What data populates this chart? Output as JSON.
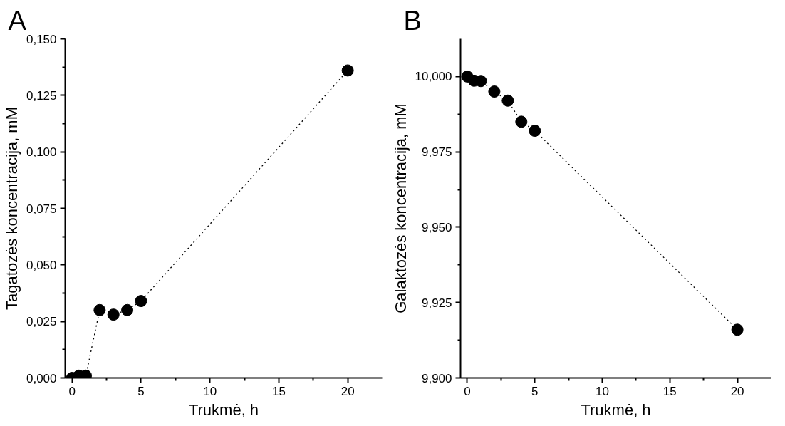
{
  "chart_data": [
    {
      "type": "line",
      "annotations": [
        "A"
      ],
      "xlabel": "Trukmė, h",
      "ylabel": "Tagatozės koncentracija, mM",
      "x": [
        0,
        0.5,
        1,
        2,
        3,
        4,
        5,
        20
      ],
      "series": [
        {
          "color": "#000000",
          "values": [
            0,
            0.001,
            0.001,
            0.03,
            0.028,
            0.03,
            0.034,
            0.136
          ]
        }
      ],
      "xlim": [
        -0.5,
        22.5
      ],
      "xticks": [
        0,
        5,
        10,
        15,
        20
      ],
      "ylim": [
        0,
        0.15
      ],
      "yticks": [
        {
          "value": 0,
          "label": "0,000"
        },
        {
          "value": 0.025,
          "label": "0,025"
        },
        {
          "value": 0.05,
          "label": "0,050"
        },
        {
          "value": 0.075,
          "label": "0,075"
        },
        {
          "value": 0.1,
          "label": "0,100"
        },
        {
          "value": 0.125,
          "label": "0,125"
        },
        {
          "value": 0.15,
          "label": "0,150"
        }
      ],
      "grid": false,
      "marker": "circle",
      "line_style": "dotted"
    },
    {
      "type": "line",
      "annotations": [
        "B"
      ],
      "xlabel": "Trukmė, h",
      "ylabel": "Galaktozės koncentracija, mM",
      "x": [
        0,
        0.5,
        1,
        2,
        3,
        4,
        5,
        20
      ],
      "series": [
        {
          "color": "#000000",
          "values": [
            10.0,
            9.9986,
            9.9985,
            9.995,
            9.992,
            9.985,
            9.982,
            9.916
          ]
        }
      ],
      "xlim": [
        -0.5,
        22.5
      ],
      "xticks": [
        0,
        5,
        10,
        15,
        20
      ],
      "ylim": [
        9.9,
        10.0125
      ],
      "yticks": [
        {
          "value": 9.9,
          "label": "9,900"
        },
        {
          "value": 9.925,
          "label": "9,925"
        },
        {
          "value": 9.95,
          "label": "9,950"
        },
        {
          "value": 9.975,
          "label": "9,975"
        },
        {
          "value": 10.0,
          "label": "10,000"
        }
      ],
      "grid": false,
      "marker": "circle",
      "line_style": "dotted"
    }
  ]
}
